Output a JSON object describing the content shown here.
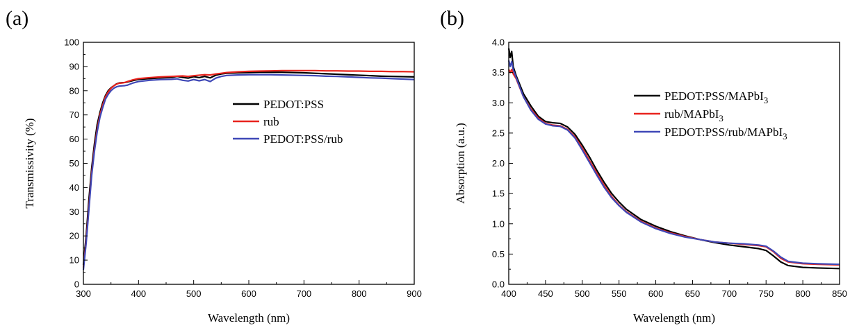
{
  "figure_labels": [
    "(a)",
    "(b)"
  ],
  "chart_data": [
    {
      "panel": "(a)",
      "type": "line",
      "title": "",
      "xlabel": "Wavelength (nm)",
      "ylabel": "Transmissivity (%)",
      "xlim": [
        300,
        900
      ],
      "ylim": [
        0,
        100
      ],
      "xticks": [
        300,
        400,
        500,
        600,
        700,
        800,
        900
      ],
      "yticks": [
        0,
        10,
        20,
        30,
        40,
        50,
        60,
        70,
        80,
        90,
        100
      ],
      "grid": false,
      "legend_position": "center-right",
      "series": [
        {
          "name": "PEDOT:PSS",
          "color": "#000000",
          "x": [
            300,
            305,
            310,
            315,
            320,
            325,
            330,
            335,
            340,
            345,
            350,
            355,
            360,
            365,
            370,
            375,
            380,
            390,
            400,
            420,
            440,
            460,
            470,
            480,
            490,
            500,
            510,
            520,
            530,
            540,
            550,
            560,
            580,
            600,
            620,
            640,
            660,
            680,
            700,
            720,
            740,
            760,
            780,
            800,
            820,
            840,
            860,
            880,
            900
          ],
          "y": [
            8,
            20,
            35,
            48,
            58,
            66,
            71,
            75,
            78,
            80,
            81.2,
            82,
            82.8,
            83.2,
            83.3,
            83.4,
            83.6,
            84.2,
            84.7,
            85.0,
            85.3,
            85.5,
            85.9,
            85.5,
            85.2,
            85.8,
            85.4,
            85.9,
            85.3,
            86.4,
            86.9,
            87.2,
            87.4,
            87.5,
            87.6,
            87.6,
            87.6,
            87.5,
            87.4,
            87.2,
            87.0,
            86.8,
            86.6,
            86.4,
            86.2,
            86.0,
            85.9,
            85.8,
            85.7
          ]
        },
        {
          "name": "rub",
          "color": "#e8231d",
          "x": [
            300,
            305,
            310,
            315,
            320,
            325,
            330,
            335,
            340,
            345,
            350,
            355,
            360,
            365,
            370,
            375,
            380,
            390,
            400,
            420,
            440,
            460,
            470,
            480,
            490,
            500,
            510,
            520,
            530,
            540,
            550,
            560,
            580,
            600,
            620,
            640,
            660,
            680,
            700,
            720,
            740,
            760,
            780,
            800,
            820,
            840,
            860,
            880,
            900
          ],
          "y": [
            7,
            18,
            32,
            46,
            56,
            64,
            70,
            74,
            77.5,
            79.5,
            81,
            82,
            82.7,
            83.1,
            83.2,
            83.4,
            83.8,
            84.5,
            85.0,
            85.4,
            85.7,
            85.9,
            86.0,
            86.1,
            85.9,
            86.2,
            86.4,
            86.6,
            86.5,
            86.9,
            87.2,
            87.5,
            87.8,
            88.0,
            88.1,
            88.2,
            88.3,
            88.3,
            88.3,
            88.3,
            88.2,
            88.2,
            88.1,
            88.1,
            88.0,
            88.0,
            87.9,
            87.9,
            87.8
          ]
        },
        {
          "name": "PEDOT:PSS/rub",
          "color": "#3f48b7",
          "x": [
            300,
            305,
            310,
            315,
            320,
            325,
            330,
            335,
            340,
            345,
            350,
            355,
            360,
            365,
            370,
            375,
            380,
            390,
            400,
            420,
            440,
            460,
            470,
            480,
            490,
            500,
            510,
            520,
            530,
            540,
            550,
            560,
            580,
            600,
            620,
            640,
            660,
            680,
            700,
            720,
            740,
            760,
            780,
            800,
            820,
            840,
            860,
            880,
            900
          ],
          "y": [
            6,
            17,
            31,
            45,
            55,
            63,
            69,
            73,
            76.5,
            78.5,
            80,
            81,
            81.6,
            81.9,
            82.0,
            82.1,
            82.3,
            83.2,
            83.8,
            84.3,
            84.6,
            84.7,
            84.9,
            84.3,
            84.0,
            84.6,
            84.1,
            84.6,
            83.8,
            85.2,
            85.9,
            86.3,
            86.5,
            86.6,
            86.6,
            86.6,
            86.5,
            86.4,
            86.3,
            86.2,
            86.0,
            85.9,
            85.7,
            85.5,
            85.3,
            85.2,
            85.0,
            84.8,
            84.6
          ]
        }
      ]
    },
    {
      "panel": "(b)",
      "type": "line",
      "title": "",
      "xlabel": "Wavelength (nm)",
      "ylabel": "Absorption (a.u.)",
      "xlim": [
        400,
        850
      ],
      "ylim": [
        0.0,
        4.0
      ],
      "xticks": [
        400,
        450,
        500,
        550,
        600,
        650,
        700,
        750,
        800,
        850
      ],
      "yticks": [
        "0.0",
        "0.5",
        "1.0",
        "1.5",
        "2.0",
        "2.5",
        "3.0",
        "3.5",
        "4.0"
      ],
      "grid": false,
      "legend_position": "top-right",
      "series": [
        {
          "name": "PEDOT:PSS/MAPbI",
          "name_subscript": "3",
          "color": "#000000",
          "x": [
            400,
            402,
            404,
            406,
            410,
            415,
            420,
            430,
            440,
            450,
            460,
            470,
            480,
            490,
            500,
            510,
            520,
            530,
            540,
            550,
            560,
            580,
            600,
            620,
            640,
            660,
            680,
            700,
            720,
            740,
            750,
            760,
            770,
            780,
            800,
            820,
            850
          ],
          "y": [
            3.9,
            3.75,
            3.85,
            3.6,
            3.45,
            3.3,
            3.15,
            2.95,
            2.78,
            2.69,
            2.67,
            2.66,
            2.6,
            2.48,
            2.3,
            2.1,
            1.88,
            1.68,
            1.5,
            1.36,
            1.24,
            1.07,
            0.96,
            0.87,
            0.8,
            0.74,
            0.69,
            0.65,
            0.62,
            0.59,
            0.56,
            0.47,
            0.37,
            0.31,
            0.28,
            0.27,
            0.26
          ]
        },
        {
          "name": "rub/MAPbI",
          "name_subscript": "3",
          "color": "#e8231d",
          "x": [
            400,
            402,
            404,
            406,
            410,
            415,
            420,
            430,
            440,
            450,
            460,
            470,
            480,
            490,
            500,
            510,
            520,
            530,
            540,
            550,
            560,
            580,
            600,
            620,
            640,
            660,
            680,
            700,
            720,
            740,
            750,
            760,
            770,
            780,
            800,
            820,
            850
          ],
          "y": [
            3.55,
            3.5,
            3.55,
            3.48,
            3.4,
            3.25,
            3.1,
            2.9,
            2.75,
            2.66,
            2.63,
            2.62,
            2.56,
            2.44,
            2.25,
            2.04,
            1.83,
            1.63,
            1.45,
            1.31,
            1.2,
            1.04,
            0.93,
            0.85,
            0.79,
            0.74,
            0.7,
            0.68,
            0.66,
            0.64,
            0.62,
            0.54,
            0.43,
            0.37,
            0.34,
            0.33,
            0.32
          ]
        },
        {
          "name": "PEDOT:PSS/rub/MAPbI",
          "name_subscript": "3",
          "color": "#3f48b7",
          "x": [
            400,
            402,
            404,
            406,
            410,
            415,
            420,
            430,
            440,
            450,
            460,
            470,
            480,
            490,
            500,
            510,
            520,
            530,
            540,
            550,
            560,
            580,
            600,
            620,
            640,
            660,
            680,
            700,
            720,
            740,
            750,
            760,
            770,
            780,
            800,
            820,
            850
          ],
          "y": [
            3.7,
            3.6,
            3.68,
            3.55,
            3.42,
            3.26,
            3.1,
            2.88,
            2.73,
            2.65,
            2.62,
            2.61,
            2.55,
            2.42,
            2.22,
            2.01,
            1.8,
            1.6,
            1.43,
            1.3,
            1.19,
            1.03,
            0.92,
            0.84,
            0.78,
            0.74,
            0.7,
            0.68,
            0.67,
            0.65,
            0.63,
            0.55,
            0.45,
            0.38,
            0.35,
            0.34,
            0.33
          ]
        }
      ]
    }
  ]
}
